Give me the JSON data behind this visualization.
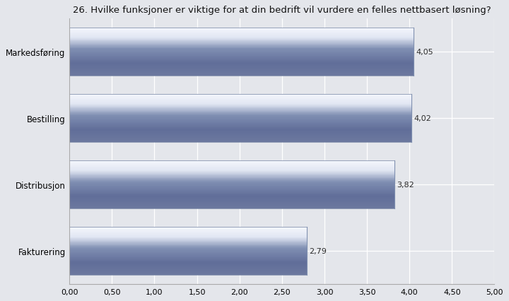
{
  "title": "26. Hvilke funksjoner er viktige for at din bedrift vil vurdere en felles nettbasert løsning?",
  "categories": [
    "Fakturering",
    "Distribusjon",
    "Bestilling",
    "Markedsføring"
  ],
  "values": [
    2.79,
    3.82,
    4.02,
    4.05
  ],
  "xlim": [
    0,
    5.0
  ],
  "xticks": [
    0.0,
    0.5,
    1.0,
    1.5,
    2.0,
    2.5,
    3.0,
    3.5,
    4.0,
    4.5,
    5.0
  ],
  "xtick_labels": [
    "0,00",
    "0,50",
    "1,00",
    "1,50",
    "2,00",
    "2,50",
    "3,00",
    "3,50",
    "4,00",
    "4,50",
    "5,00"
  ],
  "background_color": "#e4e6eb",
  "plot_bg_color": "#e4e6eb",
  "bar_bg_color": "#d8dae0",
  "grid_color": "#ffffff",
  "title_fontsize": 9.5,
  "label_fontsize": 8.5,
  "value_fontsize": 8.0,
  "tick_fontsize": 8.0,
  "bar_height": 0.72,
  "bar_gap_color": "#c8cad0"
}
